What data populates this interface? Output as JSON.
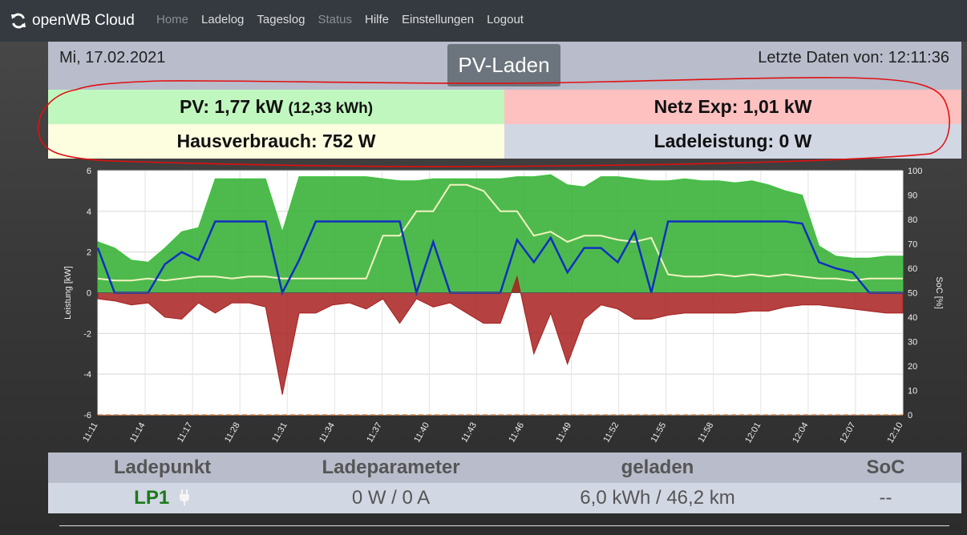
{
  "nav": {
    "brand": "openWB Cloud",
    "links": [
      {
        "label": "Home",
        "state": "disabled"
      },
      {
        "label": "Ladelog",
        "state": "active"
      },
      {
        "label": "Tageslog",
        "state": "active"
      },
      {
        "label": "Status",
        "state": "disabled"
      },
      {
        "label": "Hilfe",
        "state": "active"
      },
      {
        "label": "Einstellungen",
        "state": "active"
      },
      {
        "label": "Logout",
        "state": "active"
      }
    ]
  },
  "header": {
    "date": "Mi, 17.02.2021",
    "mode": "PV-Laden",
    "last_data": "Letzte Daten von: 12:11:36"
  },
  "stats": {
    "pv_label": "PV: 1,77 kW",
    "pv_energy": "(12,33 kWh)",
    "netz": "Netz Exp: 1,01 kW",
    "haus": "Hausverbrauch: 752 W",
    "lade": "Ladeleistung: 0 W"
  },
  "colors": {
    "pv_bg": "#c0f7bf",
    "netz_bg": "#ffc0c0",
    "haus_bg": "#fdfde0",
    "lade_bg": "#d2d7e4",
    "pv_area": "#2fae2f",
    "grid_area": "#a82020",
    "lade_line": "#1030c0",
    "haus_line": "#f3f3c0",
    "annotation": "#e01010"
  },
  "chart_data": {
    "type": "area",
    "ylabel": "Leistung [kW]",
    "y2label": "SoC [%]",
    "ylim": [
      -6,
      6
    ],
    "y2lim": [
      0,
      100
    ],
    "yticks": [
      "6",
      "4",
      "2",
      "0",
      "-2",
      "-4",
      "-6"
    ],
    "y2ticks": [
      "100",
      "90",
      "80",
      "70",
      "60",
      "50",
      "40",
      "30",
      "20",
      "10",
      "0"
    ],
    "xticks": [
      "11:11",
      "11:14",
      "11:17",
      "11:28",
      "11:31",
      "11:34",
      "11:37",
      "11:40",
      "11:43",
      "11:46",
      "11:49",
      "11:52",
      "11:55",
      "11:58",
      "12:01",
      "12:04",
      "12:07",
      "12:10"
    ],
    "grid": true,
    "series": [
      {
        "kind": "pv",
        "values": [
          2.5,
          2.2,
          1.6,
          1.5,
          2.2,
          3.0,
          3.2,
          5.6,
          5.6,
          5.6,
          5.6,
          3.0,
          5.7,
          5.7,
          5.7,
          5.7,
          5.7,
          5.6,
          5.5,
          5.5,
          5.6,
          5.6,
          5.6,
          5.6,
          5.6,
          5.7,
          5.7,
          5.8,
          5.3,
          5.2,
          5.7,
          5.7,
          5.6,
          5.5,
          5.5,
          5.6,
          5.5,
          5.5,
          5.4,
          5.5,
          5.3,
          5.0,
          4.8,
          2.3,
          1.8,
          1.7,
          1.7,
          1.8,
          1.8
        ]
      },
      {
        "kind": "grid",
        "values": [
          -0.3,
          -0.4,
          -0.6,
          -0.5,
          -1.2,
          -1.3,
          -0.5,
          -1.0,
          -0.5,
          -0.5,
          -0.7,
          -5.0,
          -1.0,
          -1.0,
          -0.6,
          -0.5,
          -0.8,
          -0.3,
          -1.5,
          -0.3,
          -0.7,
          -0.5,
          -1.0,
          -1.5,
          -1.5,
          0.8,
          -3.0,
          -1.0,
          -3.5,
          -1.3,
          -0.6,
          -0.8,
          -1.3,
          -1.3,
          -1.1,
          -1.0,
          -1.0,
          -1.0,
          -1.0,
          -0.9,
          -0.9,
          -0.7,
          -0.6,
          -0.6,
          -0.7,
          -0.8,
          -0.9,
          -1.0,
          -1.0
        ]
      },
      {
        "kind": "ladeleistung",
        "values": [
          2.2,
          0.0,
          0.0,
          0.0,
          1.4,
          2.0,
          1.6,
          3.5,
          3.5,
          3.5,
          3.5,
          0.0,
          1.6,
          3.5,
          3.5,
          3.5,
          3.5,
          3.5,
          3.5,
          0.0,
          2.5,
          0.0,
          0.0,
          0.0,
          0.0,
          2.6,
          1.5,
          2.7,
          1.0,
          2.2,
          2.2,
          1.5,
          3.0,
          0.0,
          3.5,
          3.5,
          3.5,
          3.5,
          3.5,
          3.5,
          3.5,
          3.5,
          3.4,
          1.5,
          1.2,
          1.0,
          0.0,
          0.0,
          0.0
        ]
      },
      {
        "kind": "hausverbrauch",
        "values": [
          0.7,
          0.6,
          0.6,
          0.7,
          0.6,
          0.7,
          0.8,
          0.8,
          0.7,
          0.8,
          0.8,
          0.7,
          0.7,
          0.7,
          0.7,
          0.7,
          0.7,
          2.8,
          2.8,
          4.0,
          4.0,
          5.3,
          5.3,
          5.0,
          4.0,
          4.0,
          2.8,
          3.0,
          2.5,
          2.8,
          2.8,
          2.6,
          2.5,
          2.7,
          0.9,
          0.8,
          0.8,
          0.9,
          0.8,
          0.9,
          0.8,
          0.9,
          0.8,
          0.7,
          0.7,
          0.6,
          0.7,
          0.7,
          0.7
        ]
      }
    ]
  },
  "table": {
    "headers": [
      "Ladepunkt",
      "Ladeparameter",
      "geladen",
      "SoC"
    ],
    "row": {
      "ladepunkt": "LP1",
      "ladeparameter": "0 W / 0 A",
      "geladen": "6,0 kWh / 46,2 km",
      "soc": "--"
    }
  }
}
